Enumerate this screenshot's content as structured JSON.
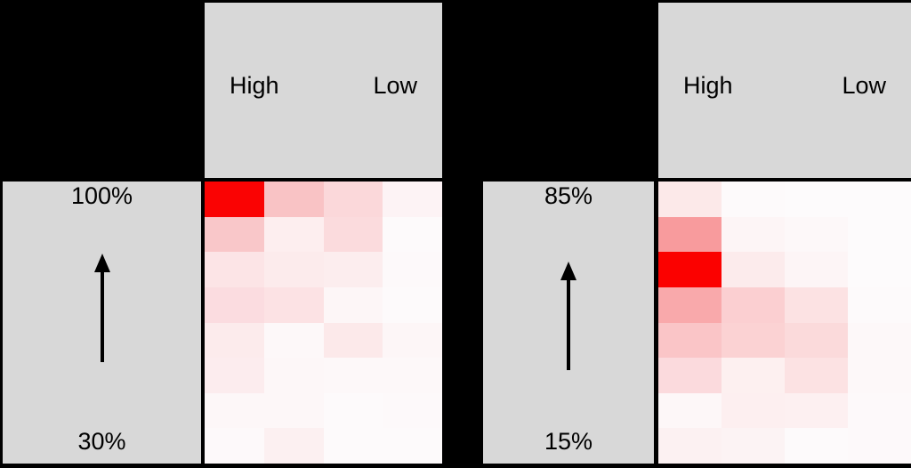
{
  "colors": {
    "background": "#000000",
    "panel_gray": "#d8d8d8",
    "text": "#000000",
    "max_red": "#fa0100"
  },
  "chart_data": [
    {
      "type": "heatmap",
      "position": "left",
      "rows": 8,
      "cols": 4,
      "column_header": {
        "left_label": "High",
        "right_label": "Low"
      },
      "y_axis": {
        "top_label": "100%",
        "bottom_label": "30%",
        "arrow": "up"
      },
      "legend": "red intensity encodes value (white = low, red = high); columns ordered High to Low; rows ordered 100% (top) to 30% (bottom)",
      "cell_colors": [
        [
          "#fa0303",
          "#f9c3c5",
          "#fbd8da",
          "#fdf3f5"
        ],
        [
          "#f9c7c9",
          "#fdeeef",
          "#fbdbdd",
          "#fdfafb"
        ],
        [
          "#fce4e6",
          "#fcebec",
          "#fcedee",
          "#fdf9fa"
        ],
        [
          "#fbdce0",
          "#fce2e4",
          "#fdf6f7",
          "#fdfafb"
        ],
        [
          "#fcebec",
          "#fdf8f9",
          "#fce9ea",
          "#fdf6f7"
        ],
        [
          "#fcecee",
          "#fdf7f8",
          "#fdf8f9",
          "#fdf8f9"
        ],
        [
          "#fdf7f8",
          "#fdf7f8",
          "#fdfafb",
          "#fdf9fa"
        ],
        [
          "#fdf9fa",
          "#fcf0f1",
          "#fdfafb",
          "#fdfafb"
        ]
      ],
      "cell_intensity": [
        [
          0.98,
          0.24,
          0.15,
          0.05
        ],
        [
          0.22,
          0.07,
          0.14,
          0.02
        ],
        [
          0.11,
          0.08,
          0.07,
          0.02
        ],
        [
          0.14,
          0.11,
          0.04,
          0.02
        ],
        [
          0.08,
          0.03,
          0.09,
          0.04
        ],
        [
          0.07,
          0.03,
          0.03,
          0.03
        ],
        [
          0.03,
          0.03,
          0.02,
          0.02
        ],
        [
          0.02,
          0.06,
          0.02,
          0.02
        ]
      ]
    },
    {
      "type": "heatmap",
      "position": "right",
      "rows": 8,
      "cols": 4,
      "column_header": {
        "left_label": "High",
        "right_label": "Low"
      },
      "y_axis": {
        "top_label": "85%",
        "bottom_label": "15%",
        "arrow": "up"
      },
      "legend": "red intensity encodes value (white = low, red = high); columns ordered High to Low; rows ordered 85% (top) to 15% (bottom)",
      "cell_colors": [
        [
          "#fce9e9",
          "#fdfafb",
          "#fdfbfc",
          "#fdfbfc"
        ],
        [
          "#f89b9d",
          "#fdf5f6",
          "#fdf8f9",
          "#fdfbfc"
        ],
        [
          "#fb0100",
          "#fcebec",
          "#fdf5f6",
          "#fdfbfc"
        ],
        [
          "#f9a9ab",
          "#fbcfd1",
          "#fce2e3",
          "#fdfafb"
        ],
        [
          "#fac5c7",
          "#fbd2d3",
          "#fbdadb",
          "#fdf8f9"
        ],
        [
          "#fbdadd",
          "#fdf0f0",
          "#fce2e3",
          "#fdf8f9"
        ],
        [
          "#fdf7f8",
          "#fdeff0",
          "#fdf0f1",
          "#fdf9fa"
        ],
        [
          "#fcf1f2",
          "#fcf3f4",
          "#fdfafb",
          "#fdf9fa"
        ]
      ],
      "cell_intensity": [
        [
          0.09,
          0.02,
          0.01,
          0.01
        ],
        [
          0.39,
          0.04,
          0.03,
          0.01
        ],
        [
          1.0,
          0.08,
          0.04,
          0.01
        ],
        [
          0.34,
          0.19,
          0.11,
          0.02
        ],
        [
          0.23,
          0.18,
          0.15,
          0.03
        ],
        [
          0.15,
          0.06,
          0.11,
          0.03
        ],
        [
          0.03,
          0.06,
          0.06,
          0.02
        ],
        [
          0.05,
          0.05,
          0.02,
          0.02
        ]
      ]
    }
  ]
}
